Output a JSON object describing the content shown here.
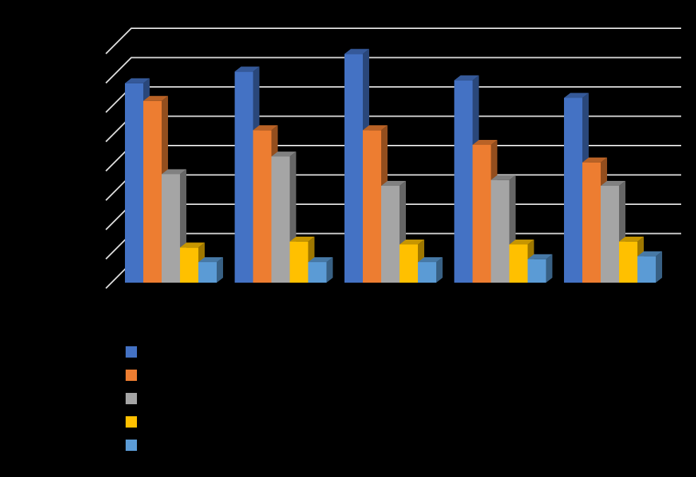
{
  "chart_data": {
    "type": "bar",
    "title": "",
    "xlabel": "",
    "ylabel": "",
    "categories": [
      "",
      "",
      "",
      "",
      ""
    ],
    "ylim": [
      0,
      8
    ],
    "grid": true,
    "legend_position": "bottom-left",
    "series": [
      {
        "color": "#4472C4",
        "values": [
          6.8,
          7.2,
          7.8,
          6.9,
          6.3
        ]
      },
      {
        "color": "#ED7D31",
        "values": [
          6.2,
          5.2,
          5.2,
          4.7,
          4.1
        ]
      },
      {
        "color": "#A5A5A5",
        "values": [
          3.7,
          4.3,
          3.3,
          3.5,
          3.3
        ]
      },
      {
        "color": "#FFC000",
        "values": [
          1.2,
          1.4,
          1.3,
          1.3,
          1.4
        ]
      },
      {
        "color": "#5B9BD5",
        "values": [
          0.7,
          0.7,
          0.7,
          0.8,
          0.9
        ]
      }
    ]
  }
}
